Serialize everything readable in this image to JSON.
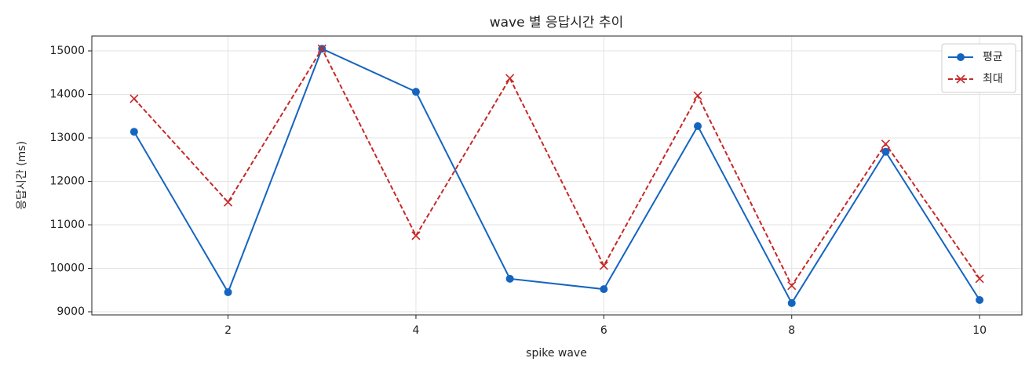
{
  "chart_data": {
    "type": "line",
    "title": "wave 별 응답시간 추이",
    "x_label": "spike wave",
    "y_label": "응답시간 (ms)",
    "x": [
      1,
      2,
      3,
      4,
      5,
      6,
      7,
      8,
      9,
      10
    ],
    "series": [
      {
        "name": "평균",
        "color": "#1565c0",
        "linestyle": "solid",
        "marker": "o",
        "values": [
          13140,
          9450,
          15050,
          14060,
          9760,
          9520,
          13270,
          9200,
          12680,
          9270
        ]
      },
      {
        "name": "최대",
        "color": "#c62828",
        "linestyle": "dashed",
        "marker": "x",
        "values": [
          13900,
          11520,
          15050,
          10750,
          14370,
          10060,
          13970,
          9600,
          12860,
          9760
        ]
      }
    ],
    "xlim": [
      0.55,
      10.45
    ],
    "xticks": [
      2,
      4,
      6,
      8,
      10
    ],
    "ylim": [
      8928,
      15342
    ],
    "yticks": [
      9000,
      10000,
      11000,
      12000,
      13000,
      14000,
      15000
    ],
    "grid": true,
    "legend": "upper right"
  }
}
